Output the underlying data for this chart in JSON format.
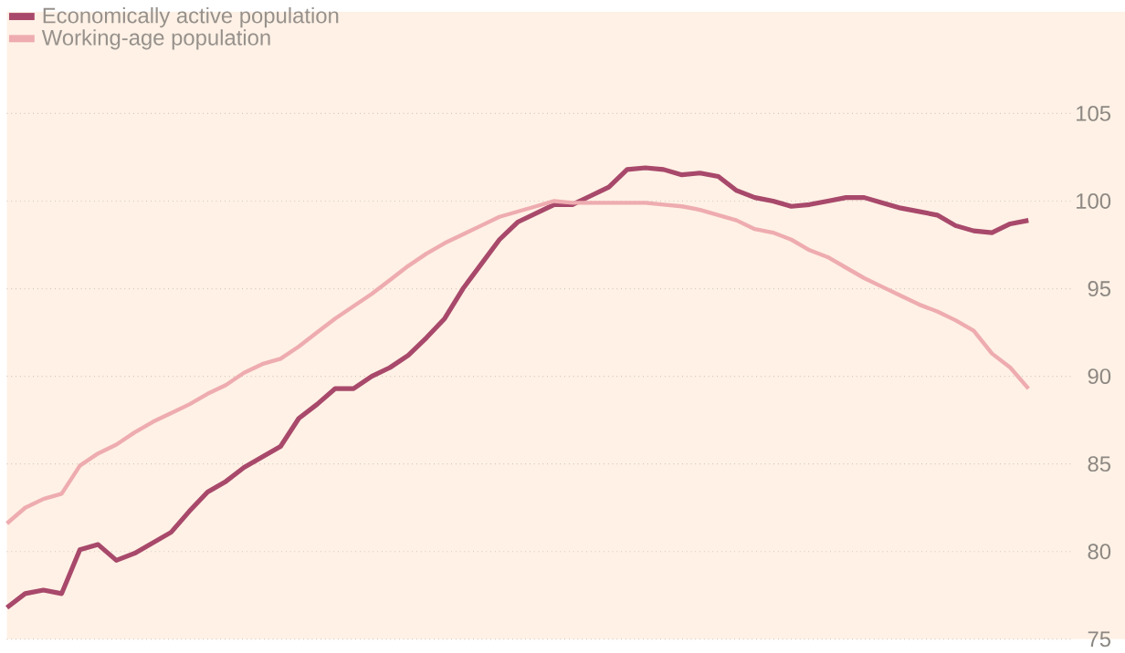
{
  "chart_data": {
    "type": "line",
    "categories": [
      null,
      null,
      null,
      null,
      null,
      null,
      null,
      null,
      null,
      null,
      null,
      null,
      null,
      null,
      null,
      null,
      null,
      null,
      null,
      null,
      null,
      null,
      null,
      null,
      null,
      null,
      null,
      null,
      null,
      null,
      null,
      null,
      null,
      null,
      null,
      null,
      null,
      null,
      null,
      null,
      null,
      null,
      null,
      null,
      null,
      null,
      null,
      null,
      null,
      null,
      null,
      null,
      null,
      null,
      null,
      null,
      null
    ],
    "series": [
      {
        "name": "Economically active population",
        "color": "#a8496b",
        "values": [
          76.8,
          77.6,
          77.8,
          77.6,
          80.1,
          80.4,
          79.5,
          79.9,
          80.5,
          81.1,
          82.3,
          83.4,
          84.0,
          84.8,
          85.4,
          86.0,
          87.6,
          88.4,
          89.3,
          89.3,
          90.0,
          90.5,
          91.2,
          92.2,
          93.3,
          95.0,
          96.4,
          97.8,
          98.8,
          99.3,
          99.8,
          99.8,
          100.3,
          100.8,
          101.8,
          101.9,
          101.8,
          101.5,
          101.6,
          101.4,
          100.6,
          100.2,
          100.0,
          99.7,
          99.8,
          100.0,
          100.2,
          100.2,
          99.9,
          99.6,
          99.4,
          99.2,
          98.6,
          98.3,
          98.2,
          98.7,
          98.9
        ]
      },
      {
        "name": "Working-age population",
        "color": "#eeacb0",
        "values": [
          81.6,
          82.5,
          83.0,
          83.3,
          84.9,
          85.6,
          86.1,
          86.8,
          87.4,
          87.9,
          88.4,
          89.0,
          89.5,
          90.2,
          90.7,
          91.0,
          91.7,
          92.5,
          93.3,
          94.0,
          94.7,
          95.5,
          96.3,
          97.0,
          97.6,
          98.1,
          98.6,
          99.1,
          99.4,
          99.7,
          100.0,
          99.9,
          99.9,
          99.9,
          99.9,
          99.9,
          99.8,
          99.7,
          99.5,
          99.2,
          98.9,
          98.4,
          98.2,
          97.8,
          97.2,
          96.8,
          96.2,
          95.6,
          95.1,
          94.6,
          94.1,
          93.7,
          93.2,
          92.6,
          91.3,
          90.5,
          89.3
        ]
      }
    ],
    "ylim": [
      75,
      105
    ],
    "yticks": [
      75,
      80,
      85,
      90,
      95,
      100,
      105
    ],
    "tick_labels": "y",
    "grid": "y",
    "legend": "top left"
  }
}
